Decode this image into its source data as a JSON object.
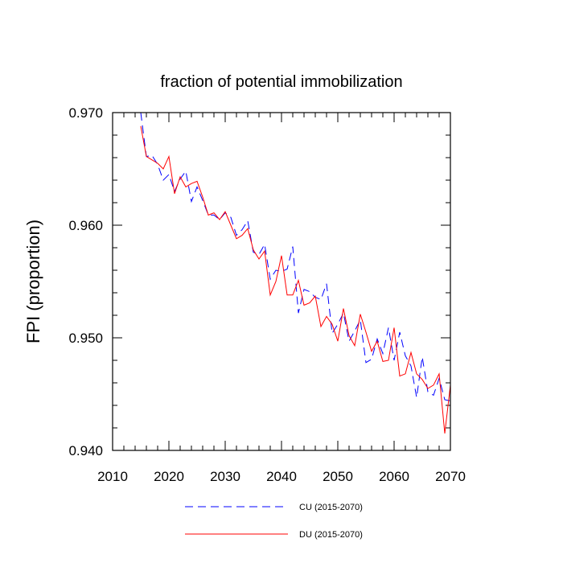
{
  "chart_data": {
    "type": "line",
    "title": "fraction of potential immobilization",
    "xlabel": "",
    "ylabel": "FPI  (proportion)",
    "xlim": [
      2010,
      2070
    ],
    "ylim": [
      0.94,
      0.97
    ],
    "x_ticks": [
      2010,
      2020,
      2030,
      2040,
      2050,
      2060,
      2070
    ],
    "y_ticks": [
      0.94,
      0.95,
      0.96,
      0.97
    ],
    "x_tick_labels": [
      "2010",
      "2020",
      "2030",
      "2040",
      "2050",
      "2060",
      "2070"
    ],
    "y_tick_labels": [
      "0.940",
      "0.950",
      "0.960",
      "0.970"
    ],
    "grid": false,
    "legend_position": "bottom-center",
    "x": [
      2015,
      2016,
      2017,
      2018,
      2019,
      2020,
      2021,
      2022,
      2023,
      2024,
      2025,
      2026,
      2027,
      2028,
      2029,
      2030,
      2031,
      2032,
      2033,
      2034,
      2035,
      2036,
      2037,
      2038,
      2039,
      2040,
      2041,
      2042,
      2043,
      2044,
      2045,
      2046,
      2047,
      2048,
      2049,
      2050,
      2051,
      2052,
      2053,
      2054,
      2055,
      2056,
      2057,
      2058,
      2059,
      2060,
      2061,
      2062,
      2063,
      2064,
      2065,
      2066,
      2067,
      2068,
      2069,
      2070
    ],
    "series": [
      {
        "name": "CU (2015-2070)",
        "color": "#0000ff",
        "style": "dashed",
        "values": [
          0.9702,
          0.9661,
          0.9662,
          0.9654,
          0.964,
          0.9645,
          0.963,
          0.9641,
          0.9648,
          0.9621,
          0.9634,
          0.9622,
          0.9609,
          0.9609,
          0.9605,
          0.9611,
          0.9607,
          0.9591,
          0.9596,
          0.9604,
          0.9576,
          0.9574,
          0.9583,
          0.9552,
          0.956,
          0.9559,
          0.9561,
          0.9581,
          0.9522,
          0.9543,
          0.9541,
          0.9536,
          0.9534,
          0.9548,
          0.9504,
          0.9512,
          0.9522,
          0.9497,
          0.9506,
          0.9516,
          0.9478,
          0.9481,
          0.9499,
          0.9486,
          0.9509,
          0.948,
          0.9505,
          0.9484,
          0.9475,
          0.9447,
          0.9483,
          0.9452,
          0.9449,
          0.9464,
          0.9445,
          0.9444
        ]
      },
      {
        "name": "DU (2015-2070)",
        "color": "#ff0000",
        "style": "solid",
        "values": [
          0.9688,
          0.9661,
          0.9658,
          0.9655,
          0.965,
          0.9661,
          0.9628,
          0.9643,
          0.9634,
          0.9637,
          0.9639,
          0.9625,
          0.9609,
          0.9611,
          0.9605,
          0.9612,
          0.96,
          0.9588,
          0.9591,
          0.9597,
          0.9578,
          0.957,
          0.9577,
          0.9538,
          0.955,
          0.9573,
          0.9538,
          0.9538,
          0.9551,
          0.9529,
          0.9531,
          0.9537,
          0.951,
          0.9519,
          0.9512,
          0.9497,
          0.9526,
          0.9502,
          0.9493,
          0.9521,
          0.9505,
          0.9488,
          0.9497,
          0.9479,
          0.948,
          0.9509,
          0.9466,
          0.9468,
          0.9487,
          0.9468,
          0.9463,
          0.9455,
          0.9458,
          0.9468,
          0.9415,
          0.9458
        ]
      }
    ]
  }
}
